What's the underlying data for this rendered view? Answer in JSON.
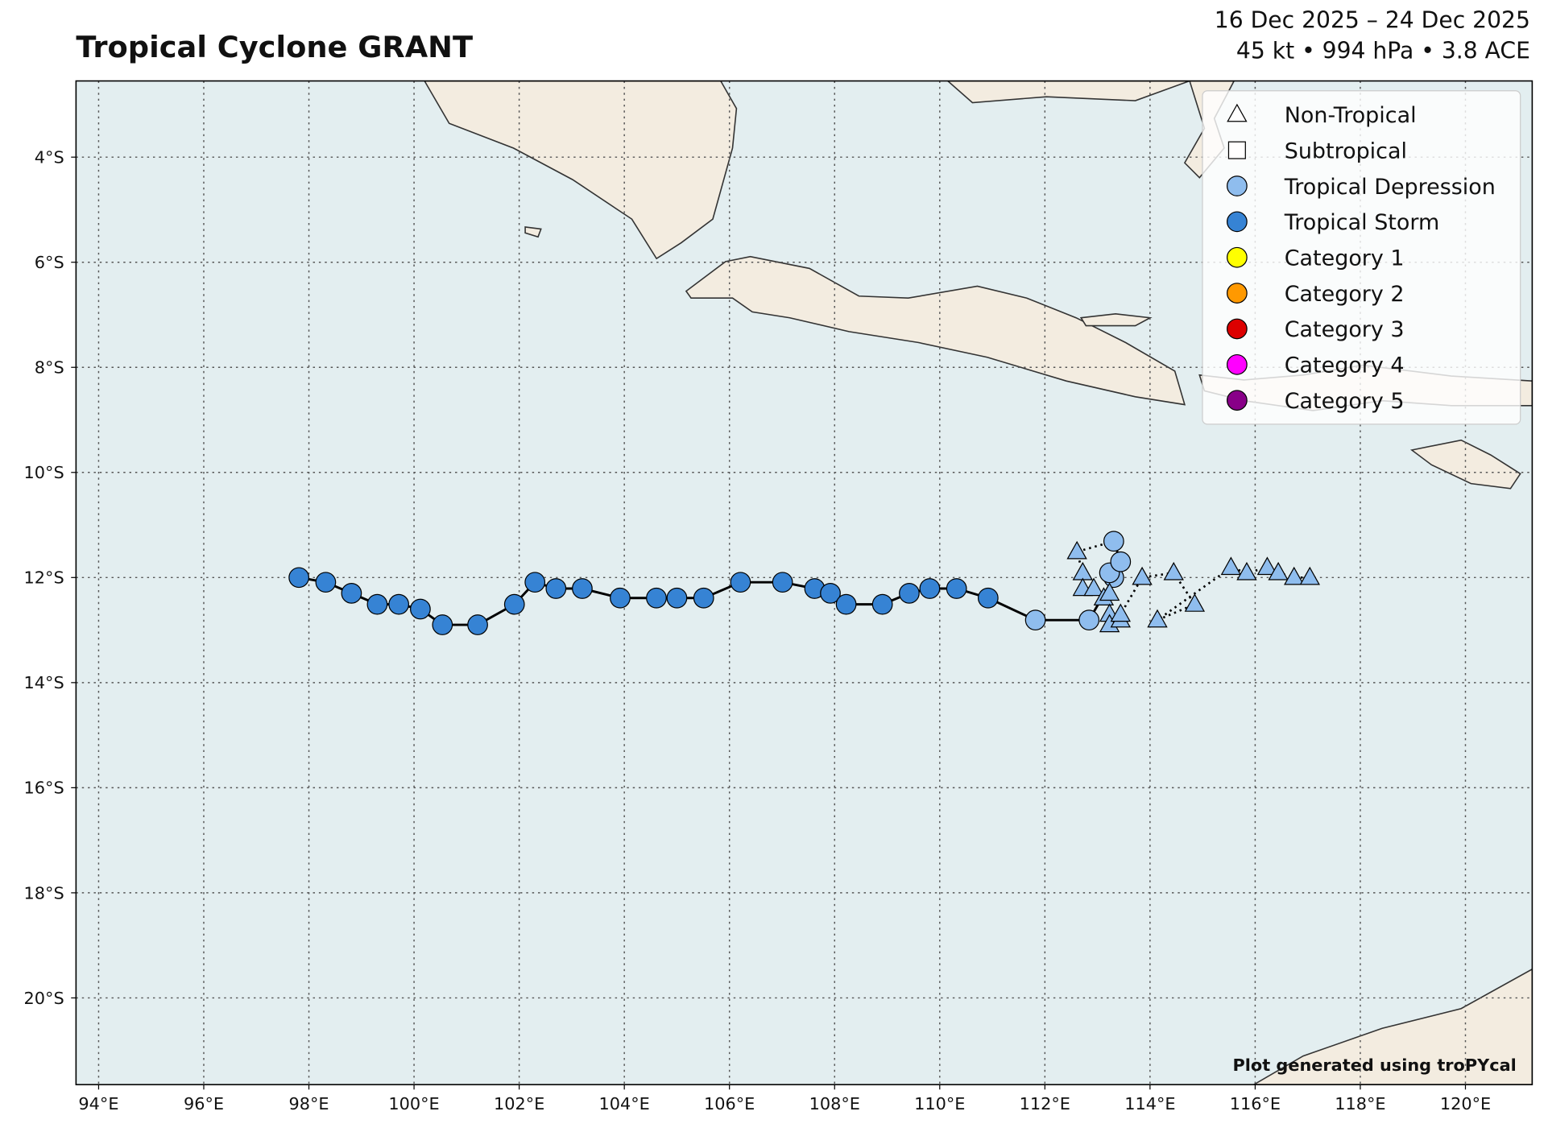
{
  "chart_data": {
    "type": "track",
    "title": "Tropical Cyclone GRANT",
    "subtitle_dates": "16 Dec 2025 – 24 Dec 2025",
    "subtitle_stats": "45 kt • 994 hPa • 3.8 ACE",
    "credit": "Plot generated using troPYcal",
    "xlim": [
      93.57,
      121.27
    ],
    "ylim": [
      -21.65,
      -2.55
    ],
    "xticks": [
      {
        "value": 94,
        "label": "94°E"
      },
      {
        "value": 96,
        "label": "96°E"
      },
      {
        "value": 98,
        "label": "98°E"
      },
      {
        "value": 100,
        "label": "100°E"
      },
      {
        "value": 102,
        "label": "102°E"
      },
      {
        "value": 104,
        "label": "104°E"
      },
      {
        "value": 106,
        "label": "106°E"
      },
      {
        "value": 108,
        "label": "108°E"
      },
      {
        "value": 110,
        "label": "110°E"
      },
      {
        "value": 112,
        "label": "112°E"
      },
      {
        "value": 114,
        "label": "114°E"
      },
      {
        "value": 116,
        "label": "116°E"
      },
      {
        "value": 118,
        "label": "118°E"
      },
      {
        "value": 120,
        "label": "120°E"
      }
    ],
    "yticks": [
      {
        "value": -4,
        "label": "4°S"
      },
      {
        "value": -6,
        "label": "6°S"
      },
      {
        "value": -8,
        "label": "8°S"
      },
      {
        "value": -10,
        "label": "10°S"
      },
      {
        "value": -12,
        "label": "12°S"
      },
      {
        "value": -14,
        "label": "14°S"
      },
      {
        "value": -16,
        "label": "16°S"
      },
      {
        "value": -18,
        "label": "18°S"
      },
      {
        "value": -20,
        "label": "20°S"
      }
    ],
    "grid": true,
    "legend_position": "upper right",
    "legend": [
      {
        "name": "Non-Tropical",
        "shape": "triangle",
        "color": "none"
      },
      {
        "name": "Subtropical",
        "shape": "square",
        "color": "none"
      },
      {
        "name": "Tropical Depression",
        "shape": "circle",
        "color": "#8fbdee"
      },
      {
        "name": "Tropical Storm",
        "shape": "circle",
        "color": "#3683d4"
      },
      {
        "name": "Category 1",
        "shape": "circle",
        "color": "#ffff00"
      },
      {
        "name": "Category 2",
        "shape": "circle",
        "color": "#ff9900"
      },
      {
        "name": "Category 3",
        "shape": "circle",
        "color": "#dd0000"
      },
      {
        "name": "Category 4",
        "shape": "circle",
        "color": "#ff00ff"
      },
      {
        "name": "Category 5",
        "shape": "circle",
        "color": "#880088"
      }
    ],
    "track": {
      "lon": [
        97.81,
        98.32,
        98.81,
        99.3,
        99.71,
        100.12,
        100.54,
        101.21,
        101.91,
        102.3,
        102.7,
        103.2,
        103.92,
        104.61,
        105.0,
        105.51,
        106.21,
        107.01,
        107.62,
        107.92,
        108.22,
        108.91,
        109.42,
        109.81,
        110.32,
        110.92,
        111.82,
        112.84,
        113.31,
        113.23,
        113.44,
        113.31,
        112.61,
        112.72,
        112.72,
        112.93,
        113.12,
        113.23,
        113.23,
        113.23,
        113.44,
        113.44,
        113.85,
        114.45,
        114.85,
        114.14,
        115.54,
        115.84,
        116.23,
        116.44,
        116.74,
        117.04
      ],
      "lat": [
        -12.0,
        -12.09,
        -12.3,
        -12.51,
        -12.51,
        -12.6,
        -12.9,
        -12.9,
        -12.51,
        -12.09,
        -12.21,
        -12.21,
        -12.39,
        -12.39,
        -12.39,
        -12.39,
        -12.09,
        -12.09,
        -12.21,
        -12.3,
        -12.51,
        -12.51,
        -12.3,
        -12.21,
        -12.21,
        -12.39,
        -12.81,
        -12.81,
        -12.0,
        -11.91,
        -11.7,
        -11.31,
        -11.51,
        -11.91,
        -12.21,
        -12.21,
        -12.39,
        -12.3,
        -12.7,
        -12.9,
        -12.81,
        -12.7,
        -12.0,
        -11.91,
        -12.51,
        -12.81,
        -11.81,
        -11.91,
        -11.81,
        -11.91,
        -12.0,
        -12.0
      ],
      "intensity": [
        "Tropical Storm",
        "Tropical Storm",
        "Tropical Storm",
        "Tropical Storm",
        "Tropical Storm",
        "Tropical Storm",
        "Tropical Storm",
        "Tropical Storm",
        "Tropical Storm",
        "Tropical Storm",
        "Tropical Storm",
        "Tropical Storm",
        "Tropical Storm",
        "Tropical Storm",
        "Tropical Storm",
        "Tropical Storm",
        "Tropical Storm",
        "Tropical Storm",
        "Tropical Storm",
        "Tropical Storm",
        "Tropical Storm",
        "Tropical Storm",
        "Tropical Storm",
        "Tropical Storm",
        "Tropical Storm",
        "Tropical Storm",
        "Tropical Depression",
        "Tropical Depression",
        "Tropical Depression",
        "Tropical Depression",
        "Tropical Depression",
        "Tropical Depression",
        "Tropical Depression",
        "Tropical Depression",
        "Tropical Depression",
        "Tropical Depression",
        "Tropical Depression",
        "Tropical Depression",
        "Tropical Depression",
        "Tropical Depression",
        "Tropical Depression",
        "Tropical Depression",
        "Tropical Depression",
        "Tropical Depression",
        "Tropical Depression",
        "Tropical Depression",
        "Tropical Depression",
        "Tropical Depression",
        "Tropical Depression",
        "Tropical Depression",
        "Tropical Depression",
        "Tropical Depression"
      ],
      "shape": [
        "circle",
        "circle",
        "circle",
        "circle",
        "circle",
        "circle",
        "circle",
        "circle",
        "circle",
        "circle",
        "circle",
        "circle",
        "circle",
        "circle",
        "circle",
        "circle",
        "circle",
        "circle",
        "circle",
        "circle",
        "circle",
        "circle",
        "circle",
        "circle",
        "circle",
        "circle",
        "circle",
        "circle",
        "circle",
        "circle",
        "circle",
        "circle",
        "triangle",
        "triangle",
        "triangle",
        "triangle",
        "triangle",
        "triangle",
        "triangle",
        "triangle",
        "triangle",
        "triangle",
        "triangle",
        "triangle",
        "triangle",
        "triangle",
        "triangle",
        "triangle",
        "triangle",
        "triangle",
        "triangle",
        "triangle"
      ]
    }
  }
}
